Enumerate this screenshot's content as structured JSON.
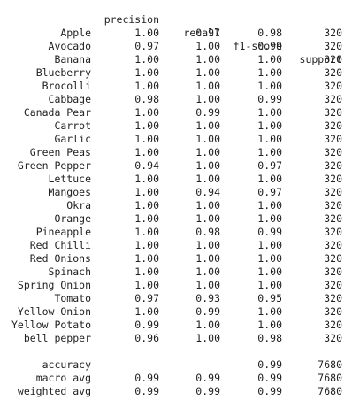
{
  "header": {
    "precision": "precision",
    "recall": "recall",
    "f1_score": "f1-score",
    "support": "support"
  },
  "rows": [
    {
      "label": "Apple",
      "precision": "1.00",
      "recall": "0.97",
      "f1": "0.98",
      "support": "320"
    },
    {
      "label": "Avocado",
      "precision": "0.97",
      "recall": "1.00",
      "f1": "0.99",
      "support": "320"
    },
    {
      "label": "Banana",
      "precision": "1.00",
      "recall": "1.00",
      "f1": "1.00",
      "support": "320"
    },
    {
      "label": "Blueberry",
      "precision": "1.00",
      "recall": "1.00",
      "f1": "1.00",
      "support": "320"
    },
    {
      "label": "Brocolli",
      "precision": "1.00",
      "recall": "1.00",
      "f1": "1.00",
      "support": "320"
    },
    {
      "label": "Cabbage",
      "precision": "0.98",
      "recall": "1.00",
      "f1": "0.99",
      "support": "320"
    },
    {
      "label": "Canada Pear",
      "precision": "1.00",
      "recall": "0.99",
      "f1": "1.00",
      "support": "320"
    },
    {
      "label": "Carrot",
      "precision": "1.00",
      "recall": "1.00",
      "f1": "1.00",
      "support": "320"
    },
    {
      "label": "Garlic",
      "precision": "1.00",
      "recall": "1.00",
      "f1": "1.00",
      "support": "320"
    },
    {
      "label": "Green Peas",
      "precision": "1.00",
      "recall": "1.00",
      "f1": "1.00",
      "support": "320"
    },
    {
      "label": "Green Pepper",
      "precision": "0.94",
      "recall": "1.00",
      "f1": "0.97",
      "support": "320"
    },
    {
      "label": "Lettuce",
      "precision": "1.00",
      "recall": "1.00",
      "f1": "1.00",
      "support": "320"
    },
    {
      "label": "Mangoes",
      "precision": "1.00",
      "recall": "0.94",
      "f1": "0.97",
      "support": "320"
    },
    {
      "label": "Okra",
      "precision": "1.00",
      "recall": "1.00",
      "f1": "1.00",
      "support": "320"
    },
    {
      "label": "Orange",
      "precision": "1.00",
      "recall": "1.00",
      "f1": "1.00",
      "support": "320"
    },
    {
      "label": "Pineapple",
      "precision": "1.00",
      "recall": "0.98",
      "f1": "0.99",
      "support": "320"
    },
    {
      "label": "Red Chilli",
      "precision": "1.00",
      "recall": "1.00",
      "f1": "1.00",
      "support": "320"
    },
    {
      "label": "Red Onions",
      "precision": "1.00",
      "recall": "1.00",
      "f1": "1.00",
      "support": "320"
    },
    {
      "label": "Spinach",
      "precision": "1.00",
      "recall": "1.00",
      "f1": "1.00",
      "support": "320"
    },
    {
      "label": "Spring Onion",
      "precision": "1.00",
      "recall": "1.00",
      "f1": "1.00",
      "support": "320"
    },
    {
      "label": "Tomato",
      "precision": "0.97",
      "recall": "0.93",
      "f1": "0.95",
      "support": "320"
    },
    {
      "label": "Yellow Onion",
      "precision": "1.00",
      "recall": "0.99",
      "f1": "1.00",
      "support": "320"
    },
    {
      "label": "Yellow Potato",
      "precision": "0.99",
      "recall": "1.00",
      "f1": "1.00",
      "support": "320"
    },
    {
      "label": "bell pepper",
      "precision": "0.96",
      "recall": "1.00",
      "f1": "0.98",
      "support": "320"
    }
  ],
  "summary": [
    {
      "label": "accuracy",
      "precision": "",
      "recall": "",
      "f1": "0.99",
      "support": "7680"
    },
    {
      "label": "macro avg",
      "precision": "0.99",
      "recall": "0.99",
      "f1": "0.99",
      "support": "7680"
    },
    {
      "label": "weighted avg",
      "precision": "0.99",
      "recall": "0.99",
      "f1": "0.99",
      "support": "7680"
    }
  ]
}
